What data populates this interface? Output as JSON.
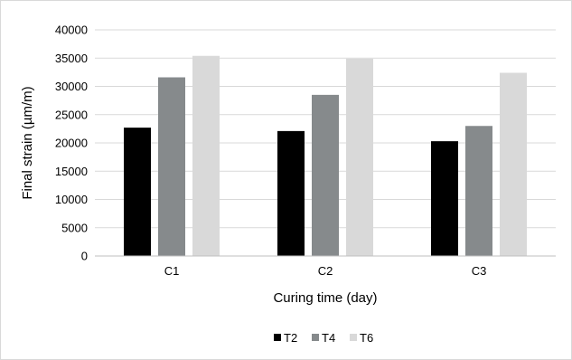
{
  "chart_data": {
    "type": "bar",
    "title": "",
    "xlabel": "Curing time (day)",
    "ylabel": "Final strain (µm/m)",
    "categories": [
      "C1",
      "C2",
      "C3"
    ],
    "series": [
      {
        "name": "T2",
        "color": "#000000",
        "values": [
          22700,
          22100,
          20300
        ]
      },
      {
        "name": "T4",
        "color": "#868a8c",
        "values": [
          31600,
          28500,
          23000
        ]
      },
      {
        "name": "T6",
        "color": "#d9d9d9",
        "values": [
          35400,
          34900,
          32400
        ]
      }
    ],
    "ylim": [
      0,
      40000
    ],
    "yticks": [
      0,
      5000,
      10000,
      15000,
      20000,
      25000,
      30000,
      35000,
      40000
    ],
    "grid": true,
    "legend_position": "bottom"
  }
}
